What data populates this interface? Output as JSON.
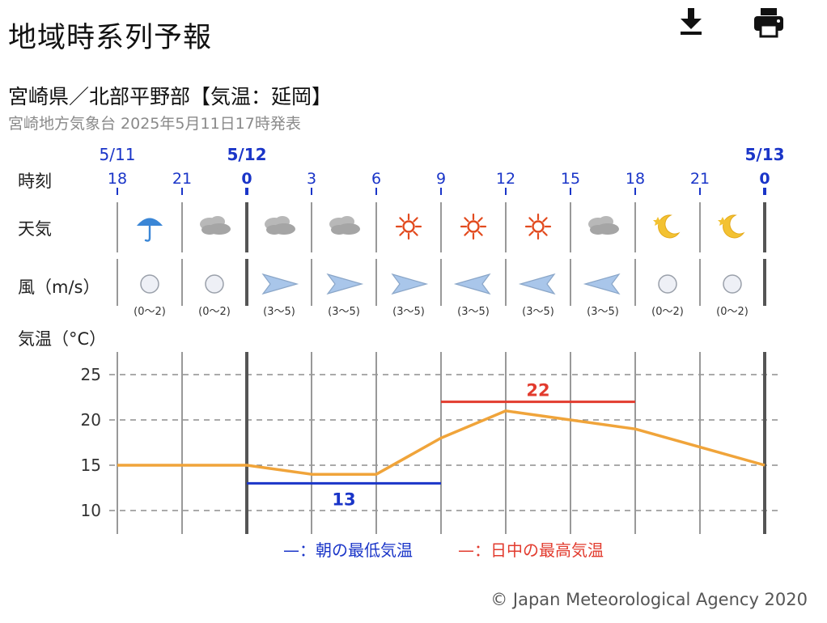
{
  "page": {
    "title": "地域時系列予報",
    "location": "宮崎県／北部平野部【気温：延岡】",
    "issued": "宮崎地方気象台 2025年5月11日17時発表",
    "copyright": "© Japan Meteorological Agency 2020",
    "download_icon": "download-icon",
    "print_icon": "print-icon"
  },
  "chart_data": {
    "type": "line",
    "row_labels": {
      "time": "時刻",
      "weather": "天気",
      "wind": "風（m/s）",
      "temp": "気温（°C）"
    },
    "dates": [
      {
        "label": "5/11",
        "at": 0,
        "bold": false
      },
      {
        "label": "5/12",
        "at": 2,
        "bold": true
      },
      {
        "label": "5/13",
        "at": 10,
        "bold": true
      }
    ],
    "hours": [
      "18",
      "21",
      "0",
      "3",
      "6",
      "9",
      "12",
      "15",
      "18",
      "21",
      "0"
    ],
    "weather": [
      "rain-umbrella-icon",
      "cloud-icon",
      "cloud-icon",
      "cloud-icon",
      "sun-icon",
      "sun-icon",
      "sun-icon",
      "cloud-icon",
      "moon-icon",
      "moon-icon"
    ],
    "wind": [
      {
        "dir": "calm",
        "range": "(0〜2)"
      },
      {
        "dir": "calm",
        "range": "(0〜2)"
      },
      {
        "dir": "east",
        "range": "(3〜5)"
      },
      {
        "dir": "east",
        "range": "(3〜5)"
      },
      {
        "dir": "east",
        "range": "(3〜5)"
      },
      {
        "dir": "west",
        "range": "(3〜5)"
      },
      {
        "dir": "west",
        "range": "(3〜5)"
      },
      {
        "dir": "west",
        "range": "(3〜5)"
      },
      {
        "dir": "calm",
        "range": "(0〜2)"
      },
      {
        "dir": "calm",
        "range": "(0〜2)"
      }
    ],
    "temperature": [
      15,
      15,
      15,
      14,
      14,
      18,
      21,
      20,
      19,
      17,
      15
    ],
    "min_temp": {
      "value": 13,
      "from": 2,
      "to": 5
    },
    "max_temp": {
      "value": 22,
      "from": 5,
      "to": 8
    },
    "y_ticks": [
      10,
      15,
      20,
      25
    ],
    "ylim": [
      8,
      27
    ],
    "grid": true,
    "legend": [
      {
        "label": "—：朝の最低気温",
        "color": "#1a35c8"
      },
      {
        "label": "—：日中の最高気温",
        "color": "#e23b2e"
      }
    ],
    "colors": {
      "line": "#f0a43a",
      "min": "#1a35c8",
      "max": "#e23b2e",
      "hour_text": "#1a35c8",
      "date_text": "#1a35c8"
    }
  }
}
